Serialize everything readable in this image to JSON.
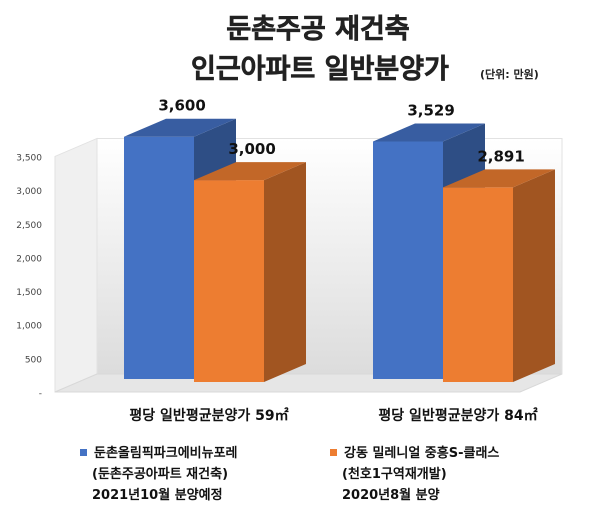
{
  "chart_data": {
    "type": "bar",
    "title_line1": "둔촌주공 재건축",
    "title_line2": "인근아파트 일반분양가",
    "unit_note": "(단위: 만원)",
    "categories": [
      "평당 일반평균분양가 59㎡",
      "평당 일반평균분양가 84㎡"
    ],
    "series": [
      {
        "name": "둔촌올림픽파크에비뉴포레",
        "color": "#4472C4",
        "values": [
          3600,
          3529
        ],
        "value_labels": [
          "3,600",
          "3,529"
        ]
      },
      {
        "name": "강동 밀레니얼 중흥S-클래스",
        "color": "#ED7D31",
        "values": [
          3000,
          2891
        ],
        "value_labels": [
          "3,000",
          "2,891"
        ]
      }
    ],
    "ylim": [
      0,
      3500
    ],
    "y_ticks": [
      0,
      500,
      1000,
      1500,
      2000,
      2500,
      3000,
      3500
    ],
    "y_tick_labels": [
      "-",
      "500",
      "1,000",
      "1,500",
      "2,000",
      "2,500",
      "3,000",
      "3,500"
    ],
    "legend": [
      {
        "lines": [
          "둔촌올림픽파크에비뉴포레",
          "(둔촌주공아파트 재건축)",
          "2021년10월 분양예정"
        ],
        "color": "#4472C4"
      },
      {
        "lines": [
          "강동 밀레니얼 중흥S-클래스",
          "(천호1구역재개발)",
          "2020년8월 분양"
        ],
        "color": "#ED7D31"
      }
    ],
    "legend_position": "bottom",
    "grid": false
  }
}
